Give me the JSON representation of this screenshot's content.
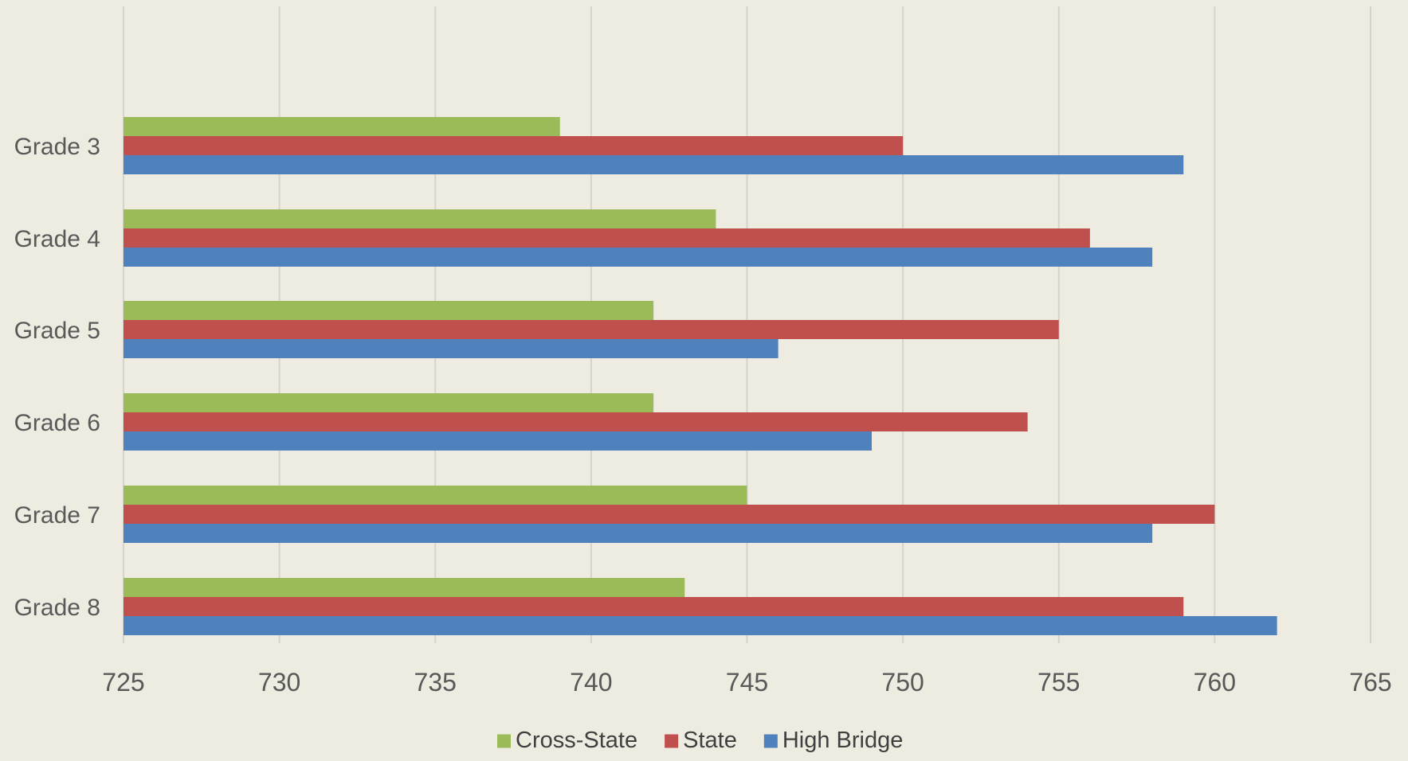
{
  "chart_data": {
    "type": "bar",
    "orientation": "horizontal",
    "categories": [
      "Grade 3",
      "Grade 4",
      "Grade 5",
      "Grade 6",
      "Grade 7",
      "Grade 8"
    ],
    "series": [
      {
        "name": "Cross-State",
        "color": "#9bbb59",
        "values": [
          739,
          744,
          742,
          742,
          745,
          743
        ]
      },
      {
        "name": "State",
        "color": "#c0504d",
        "values": [
          750,
          756,
          755,
          754,
          760,
          759
        ]
      },
      {
        "name": "High Bridge",
        "color": "#4f81bd",
        "values": [
          759,
          758,
          746,
          749,
          758,
          762
        ]
      }
    ],
    "xlim": [
      725,
      765
    ],
    "x_ticks": [
      725,
      730,
      735,
      740,
      745,
      750,
      755,
      760,
      765
    ],
    "grid": true,
    "legend_position": "bottom",
    "title": "",
    "xlabel": "",
    "ylabel": ""
  }
}
